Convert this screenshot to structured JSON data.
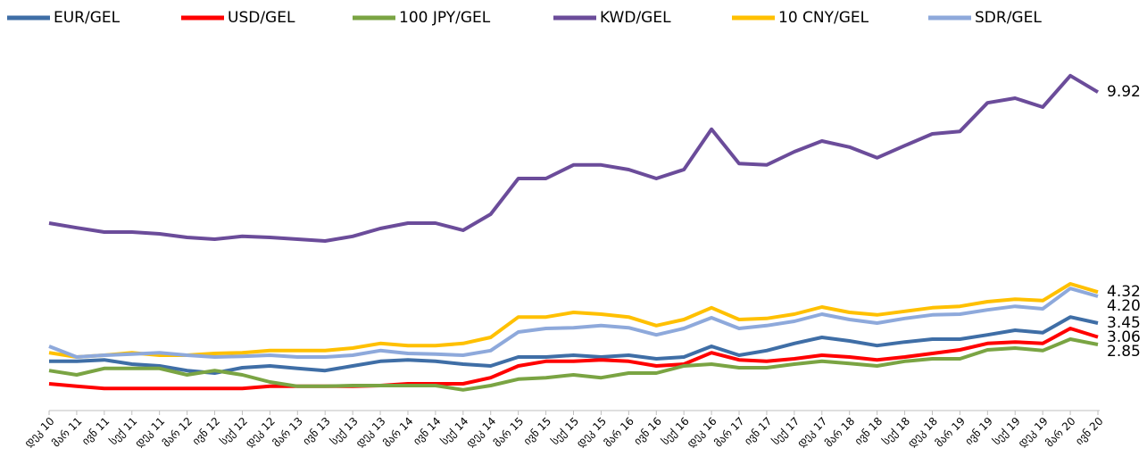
{
  "chart_data": {
    "type": "line",
    "categories": [
      "დეკ 10",
      "მარ 11",
      "ივნ 11",
      "სექ 11",
      "დეკ 11",
      "მარ 12",
      "ივნ 12",
      "სექ 12",
      "დეკ 12",
      "მარ 13",
      "ივნ 13",
      "სექ 13",
      "დეკ 13",
      "მარ 14",
      "ივნ 14",
      "სექ 14",
      "დეკ 14",
      "მარ 15",
      "ივნ 15",
      "სექ 15",
      "დეკ 15",
      "მარ 16",
      "ივნ 16",
      "სექ 16",
      "დეკ 16",
      "მარ 17",
      "ივნ 17",
      "სექ 17",
      "დეკ 17",
      "მარ 18",
      "ივნ 18",
      "სექ 18",
      "დეკ 18",
      "მარ 19",
      "ივნ 19",
      "სექ 19",
      "დეკ 19",
      "მარ 20",
      "ივნ 20"
    ],
    "ylim": [
      1,
      11.5
    ],
    "series": [
      {
        "name": "EUR/GEL",
        "color": "#3f6ea6",
        "values": [
          2.38,
          2.38,
          2.42,
          2.3,
          2.25,
          2.12,
          2.05,
          2.2,
          2.25,
          2.18,
          2.12,
          2.25,
          2.38,
          2.42,
          2.38,
          2.3,
          2.25,
          2.5,
          2.5,
          2.55,
          2.5,
          2.55,
          2.45,
          2.5,
          2.8,
          2.55,
          2.68,
          2.88,
          3.05,
          2.95,
          2.82,
          2.92,
          3.0,
          3.0,
          3.12,
          3.25,
          3.18,
          3.62,
          3.45
        ],
        "value_labels": [
          null,
          null,
          null,
          null,
          null,
          null,
          null,
          null,
          null,
          null,
          null,
          null,
          null,
          null,
          null,
          null,
          null,
          null,
          null,
          null,
          null,
          null,
          null,
          null,
          null,
          null,
          null,
          null,
          null,
          null,
          null,
          null,
          null,
          null,
          null,
          null,
          null,
          null,
          "3.45"
        ]
      },
      {
        "name": "USD/GEL",
        "color": "#ff0000",
        "values": [
          1.75,
          1.68,
          1.62,
          1.62,
          1.62,
          1.62,
          1.62,
          1.62,
          1.68,
          1.68,
          1.68,
          1.68,
          1.7,
          1.75,
          1.75,
          1.75,
          1.92,
          2.25,
          2.38,
          2.38,
          2.42,
          2.38,
          2.25,
          2.3,
          2.62,
          2.42,
          2.38,
          2.45,
          2.55,
          2.5,
          2.42,
          2.5,
          2.6,
          2.7,
          2.88,
          2.92,
          2.88,
          3.3,
          3.06
        ],
        "value_labels": [
          null,
          null,
          null,
          null,
          null,
          null,
          null,
          null,
          null,
          null,
          null,
          null,
          null,
          null,
          null,
          null,
          null,
          null,
          null,
          null,
          null,
          null,
          null,
          null,
          null,
          null,
          null,
          null,
          null,
          null,
          null,
          null,
          null,
          null,
          null,
          null,
          null,
          null,
          "3.06"
        ]
      },
      {
        "name": "100 JPY/GEL",
        "color": "#7aa443",
        "values": [
          2.12,
          2.0,
          2.18,
          2.18,
          2.18,
          2.0,
          2.12,
          2.0,
          1.8,
          1.68,
          1.68,
          1.7,
          1.7,
          1.7,
          1.7,
          1.58,
          1.7,
          1.88,
          1.92,
          2.0,
          1.92,
          2.05,
          2.05,
          2.25,
          2.3,
          2.2,
          2.2,
          2.3,
          2.38,
          2.32,
          2.25,
          2.38,
          2.45,
          2.45,
          2.7,
          2.75,
          2.68,
          3.0,
          2.85
        ],
        "value_labels": [
          null,
          null,
          null,
          null,
          null,
          null,
          null,
          null,
          null,
          null,
          null,
          null,
          null,
          null,
          null,
          null,
          null,
          null,
          null,
          null,
          null,
          null,
          null,
          null,
          null,
          null,
          null,
          null,
          null,
          null,
          null,
          null,
          null,
          null,
          null,
          null,
          null,
          null,
          "2.85"
        ]
      },
      {
        "name": "KWD/GEL",
        "color": "#6b4c9a",
        "values": [
          6.25,
          6.12,
          6.0,
          6.0,
          5.95,
          5.85,
          5.8,
          5.88,
          5.85,
          5.8,
          5.75,
          5.88,
          6.1,
          6.25,
          6.25,
          6.05,
          6.5,
          7.5,
          7.5,
          7.88,
          7.88,
          7.75,
          7.5,
          7.75,
          8.88,
          7.92,
          7.88,
          8.25,
          8.55,
          8.38,
          8.08,
          8.42,
          8.75,
          8.82,
          9.62,
          9.75,
          9.5,
          10.38,
          9.92
        ],
        "value_labels": [
          null,
          null,
          null,
          null,
          null,
          null,
          null,
          null,
          null,
          null,
          null,
          null,
          null,
          null,
          null,
          null,
          null,
          null,
          null,
          null,
          null,
          null,
          null,
          null,
          null,
          null,
          null,
          null,
          null,
          null,
          null,
          null,
          null,
          null,
          null,
          null,
          null,
          null,
          "9.92"
        ]
      },
      {
        "name": "10 CNY/GEL",
        "color": "#ffc000",
        "values": [
          2.62,
          2.5,
          2.55,
          2.62,
          2.55,
          2.55,
          2.6,
          2.62,
          2.68,
          2.68,
          2.68,
          2.75,
          2.88,
          2.82,
          2.82,
          2.88,
          3.05,
          3.62,
          3.62,
          3.75,
          3.7,
          3.62,
          3.38,
          3.55,
          3.88,
          3.55,
          3.58,
          3.7,
          3.9,
          3.75,
          3.68,
          3.78,
          3.88,
          3.92,
          4.05,
          4.12,
          4.08,
          4.55,
          4.32
        ],
        "value_labels": [
          null,
          null,
          null,
          null,
          null,
          null,
          null,
          null,
          null,
          null,
          null,
          null,
          null,
          null,
          null,
          null,
          null,
          null,
          null,
          null,
          null,
          null,
          null,
          null,
          null,
          null,
          null,
          null,
          null,
          null,
          null,
          null,
          null,
          null,
          null,
          null,
          null,
          null,
          "4.32"
        ]
      },
      {
        "name": "SDR/GEL",
        "color": "#8ea9db",
        "values": [
          2.8,
          2.5,
          2.55,
          2.58,
          2.62,
          2.55,
          2.5,
          2.52,
          2.55,
          2.5,
          2.5,
          2.55,
          2.68,
          2.6,
          2.58,
          2.55,
          2.68,
          3.2,
          3.3,
          3.32,
          3.38,
          3.32,
          3.12,
          3.3,
          3.6,
          3.3,
          3.38,
          3.5,
          3.7,
          3.55,
          3.45,
          3.58,
          3.68,
          3.7,
          3.82,
          3.92,
          3.85,
          4.42,
          4.2
        ],
        "value_labels": [
          null,
          null,
          null,
          null,
          null,
          null,
          null,
          null,
          null,
          null,
          null,
          null,
          null,
          null,
          null,
          null,
          null,
          null,
          null,
          null,
          null,
          null,
          null,
          null,
          null,
          null,
          null,
          null,
          null,
          null,
          null,
          null,
          null,
          null,
          null,
          null,
          null,
          null,
          "4.20"
        ]
      }
    ]
  }
}
